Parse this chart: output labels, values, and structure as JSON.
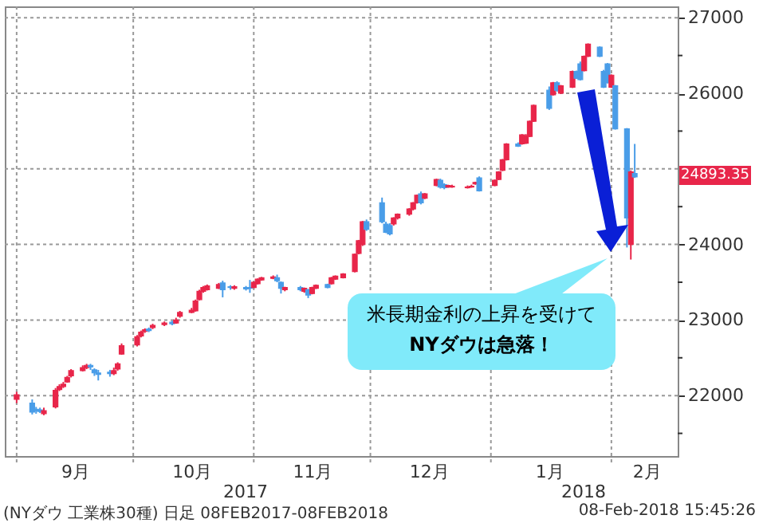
{
  "chart_data": {
    "type": "candlestick",
    "x": [
      "2017-09-01",
      "2017-09-05",
      "2017-09-06",
      "2017-09-07",
      "2017-09-08",
      "2017-09-11",
      "2017-09-12",
      "2017-09-13",
      "2017-09-14",
      "2017-09-15",
      "2017-09-18",
      "2017-09-19",
      "2017-09-20",
      "2017-09-21",
      "2017-09-22",
      "2017-09-25",
      "2017-09-26",
      "2017-09-27",
      "2017-09-28",
      "2017-10-02",
      "2017-10-03",
      "2017-10-04",
      "2017-10-05",
      "2017-10-06",
      "2017-10-09",
      "2017-10-11",
      "2017-10-12",
      "2017-10-13",
      "2017-10-16",
      "2017-10-17",
      "2017-10-18",
      "2017-10-19",
      "2017-10-20",
      "2017-10-23",
      "2017-10-24",
      "2017-10-26",
      "2017-10-27",
      "2017-10-30",
      "2017-10-31",
      "2017-11-01",
      "2017-11-02",
      "2017-11-03",
      "2017-11-06",
      "2017-11-07",
      "2017-11-08",
      "2017-11-09",
      "2017-11-13",
      "2017-11-14",
      "2017-11-15",
      "2017-11-16",
      "2017-11-17",
      "2017-11-20",
      "2017-11-21",
      "2017-11-22",
      "2017-11-24",
      "2017-11-27",
      "2017-11-28",
      "2017-11-29",
      "2017-11-30",
      "2017-12-04",
      "2017-12-05",
      "2017-12-06",
      "2017-12-07",
      "2017-12-08",
      "2017-12-11",
      "2017-12-12",
      "2017-12-13",
      "2017-12-14",
      "2017-12-15",
      "2017-12-18",
      "2017-12-19",
      "2017-12-20",
      "2017-12-21",
      "2017-12-22",
      "2017-12-26",
      "2017-12-27",
      "2017-12-28",
      "2017-12-29",
      "2018-01-02",
      "2018-01-03",
      "2018-01-04",
      "2018-01-05",
      "2018-01-08",
      "2018-01-09",
      "2018-01-10",
      "2018-01-11",
      "2018-01-12",
      "2018-01-16",
      "2018-01-17",
      "2018-01-18",
      "2018-01-19",
      "2018-01-22",
      "2018-01-23",
      "2018-01-24",
      "2018-01-25",
      "2018-01-26",
      "2018-01-29",
      "2018-01-30",
      "2018-01-31",
      "2018-02-01",
      "2018-02-02",
      "2018-02-05",
      "2018-02-06",
      "2018-02-07"
    ],
    "ohlc": [
      [
        21950,
        22050,
        21900,
        22010
      ],
      [
        21900,
        21950,
        21750,
        21780
      ],
      [
        21820,
        21850,
        21760,
        21800
      ],
      [
        21810,
        21840,
        21770,
        21790
      ],
      [
        21760,
        21840,
        21740,
        21800
      ],
      [
        21850,
        22100,
        21830,
        22070
      ],
      [
        22080,
        22150,
        22060,
        22120
      ],
      [
        22120,
        22180,
        22100,
        22150
      ],
      [
        22180,
        22260,
        22170,
        22240
      ],
      [
        22260,
        22350,
        22240,
        22330
      ],
      [
        22330,
        22400,
        22320,
        22370
      ],
      [
        22370,
        22420,
        22350,
        22400
      ],
      [
        22400,
        22420,
        22340,
        22380
      ],
      [
        22340,
        22360,
        22260,
        22300
      ],
      [
        22300,
        22340,
        22200,
        22280
      ],
      [
        22310,
        22340,
        22250,
        22290
      ],
      [
        22290,
        22370,
        22270,
        22330
      ],
      [
        22350,
        22440,
        22330,
        22420
      ],
      [
        22550,
        22690,
        22540,
        22660
      ],
      [
        22670,
        22800,
        22650,
        22780
      ],
      [
        22790,
        22860,
        22770,
        22840
      ],
      [
        22850,
        22890,
        22830,
        22870
      ],
      [
        22880,
        22900,
        22840,
        22860
      ],
      [
        22900,
        22950,
        22880,
        22930
      ],
      [
        22940,
        22980,
        22920,
        22960
      ],
      [
        22970,
        22990,
        22930,
        22950
      ],
      [
        22960,
        23030,
        22950,
        23000
      ],
      [
        23050,
        23120,
        23030,
        23100
      ],
      [
        23100,
        23160,
        23090,
        23130
      ],
      [
        23120,
        23270,
        23110,
        23250
      ],
      [
        23270,
        23400,
        23260,
        23380
      ],
      [
        23380,
        23450,
        23360,
        23430
      ],
      [
        23400,
        23470,
        23390,
        23450
      ],
      [
        23420,
        23490,
        23410,
        23470
      ],
      [
        23490,
        23520,
        23300,
        23400
      ],
      [
        23440,
        23460,
        23400,
        23430
      ],
      [
        23420,
        23460,
        23400,
        23440
      ],
      [
        23430,
        23450,
        23390,
        23410
      ],
      [
        23430,
        23530,
        23360,
        23420
      ],
      [
        23430,
        23510,
        23420,
        23500
      ],
      [
        23480,
        23550,
        23470,
        23540
      ],
      [
        23530,
        23570,
        23520,
        23560
      ],
      [
        23550,
        23590,
        23540,
        23570
      ],
      [
        23560,
        23600,
        23500,
        23520
      ],
      [
        23500,
        23510,
        23350,
        23420
      ],
      [
        23400,
        23440,
        23380,
        23430
      ],
      [
        23430,
        23450,
        23380,
        23400
      ],
      [
        23380,
        23430,
        23360,
        23420
      ],
      [
        23400,
        23410,
        23290,
        23330
      ],
      [
        23350,
        23440,
        23340,
        23430
      ],
      [
        23420,
        23470,
        23410,
        23460
      ],
      [
        23470,
        23480,
        23420,
        23430
      ],
      [
        23480,
        23570,
        23470,
        23560
      ],
      [
        23540,
        23590,
        23530,
        23580
      ],
      [
        23560,
        23620,
        23550,
        23610
      ],
      [
        23640,
        23880,
        23630,
        23870
      ],
      [
        23880,
        24060,
        23870,
        24050
      ],
      [
        24000,
        24310,
        23980,
        24300
      ],
      [
        24300,
        24330,
        24180,
        24200
      ],
      [
        24550,
        24620,
        24280,
        24300
      ],
      [
        24270,
        24300,
        24150,
        24160
      ],
      [
        24250,
        24280,
        24120,
        24140
      ],
      [
        24270,
        24360,
        24250,
        24350
      ],
      [
        24350,
        24410,
        24330,
        24400
      ],
      [
        24400,
        24480,
        24380,
        24470
      ],
      [
        24470,
        24560,
        24450,
        24550
      ],
      [
        24550,
        24660,
        24540,
        24650
      ],
      [
        24670,
        24700,
        24530,
        24550
      ],
      [
        24610,
        24680,
        24600,
        24670
      ],
      [
        24780,
        24870,
        24770,
        24860
      ],
      [
        24850,
        24870,
        24740,
        24760
      ],
      [
        24790,
        24810,
        24730,
        24750
      ],
      [
        24760,
        24790,
        24750,
        24780
      ],
      [
        24760,
        24790,
        24750,
        24770
      ],
      [
        24750,
        24780,
        24740,
        24760
      ],
      [
        24760,
        24790,
        24750,
        24770
      ],
      [
        24800,
        24830,
        24790,
        24820
      ],
      [
        24880,
        24900,
        24700,
        24710
      ],
      [
        24780,
        24860,
        24770,
        24850
      ],
      [
        24860,
        24970,
        24850,
        24960
      ],
      [
        24980,
        25130,
        24970,
        25120
      ],
      [
        25120,
        25340,
        25110,
        25330
      ],
      [
        25330,
        25350,
        25290,
        25300
      ],
      [
        25330,
        25460,
        25320,
        25450
      ],
      [
        25340,
        25460,
        25330,
        25440
      ],
      [
        25430,
        25640,
        25420,
        25630
      ],
      [
        25630,
        25850,
        25620,
        25840
      ],
      [
        26040,
        26090,
        25780,
        25800
      ],
      [
        25980,
        26150,
        25970,
        26140
      ],
      [
        26140,
        26160,
        26020,
        26040
      ],
      [
        26000,
        26110,
        25990,
        26100
      ],
      [
        26080,
        26300,
        26070,
        26290
      ],
      [
        26290,
        26300,
        26190,
        26200
      ],
      [
        26390,
        26420,
        26170,
        26180
      ],
      [
        26300,
        26500,
        26290,
        26490
      ],
      [
        26490,
        26660,
        26480,
        26650
      ],
      [
        26610,
        26620,
        26480,
        26490
      ],
      [
        26290,
        26310,
        26070,
        26080
      ],
      [
        26390,
        26400,
        26130,
        26140
      ],
      [
        26080,
        26250,
        26070,
        26240
      ],
      [
        26100,
        26110,
        25520,
        25530
      ],
      [
        25530,
        25540,
        23960,
        24350
      ],
      [
        24000,
        24980,
        23800,
        24960
      ],
      [
        24940,
        25330,
        24880,
        24893.35
      ]
    ],
    "colors": [
      "#e8264a",
      "#4a9de8",
      "#4a9de8",
      "#4a9de8",
      "#e8264a",
      "#e8264a",
      "#e8264a",
      "#e8264a",
      "#e8264a",
      "#e8264a",
      "#e8264a",
      "#e8264a",
      "#4a9de8",
      "#4a9de8",
      "#4a9de8",
      "#4a9de8",
      "#e8264a",
      "#e8264a",
      "#e8264a",
      "#e8264a",
      "#e8264a",
      "#e8264a",
      "#4a9de8",
      "#e8264a",
      "#e8264a",
      "#4a9de8",
      "#e8264a",
      "#e8264a",
      "#e8264a",
      "#e8264a",
      "#e8264a",
      "#e8264a",
      "#e8264a",
      "#e8264a",
      "#4a9de8",
      "#4a9de8",
      "#e8264a",
      "#4a9de8",
      "#4a9de8",
      "#e8264a",
      "#e8264a",
      "#e8264a",
      "#e8264a",
      "#4a9de8",
      "#4a9de8",
      "#e8264a",
      "#4a9de8",
      "#e8264a",
      "#4a9de8",
      "#e8264a",
      "#e8264a",
      "#4a9de8",
      "#e8264a",
      "#e8264a",
      "#e8264a",
      "#e8264a",
      "#e8264a",
      "#e8264a",
      "#4a9de8",
      "#4a9de8",
      "#4a9de8",
      "#4a9de8",
      "#e8264a",
      "#e8264a",
      "#e8264a",
      "#e8264a",
      "#e8264a",
      "#4a9de8",
      "#e8264a",
      "#e8264a",
      "#4a9de8",
      "#4a9de8",
      "#e8264a",
      "#e8264a",
      "#e8264a",
      "#e8264a",
      "#e8264a",
      "#4a9de8",
      "#e8264a",
      "#e8264a",
      "#e8264a",
      "#e8264a",
      "#4a9de8",
      "#e8264a",
      "#e8264a",
      "#e8264a",
      "#e8264a",
      "#4a9de8",
      "#e8264a",
      "#4a9de8",
      "#e8264a",
      "#e8264a",
      "#4a9de8",
      "#4a9de8",
      "#e8264a",
      "#e8264a",
      "#4a9de8",
      "#4a9de8",
      "#4a9de8",
      "#e8264a",
      "#4a9de8",
      "#4a9de8",
      "#e8264a",
      "#4a9de8"
    ],
    "xlim": [
      "2017-08-31",
      "2018-02-16"
    ],
    "xticks": [
      {
        "value": "2017-09-01",
        "label": null
      },
      {
        "value": "2017-09-16",
        "label": "9月"
      },
      {
        "value": "2017-10-01",
        "label": null
      },
      {
        "value": "2017-10-16",
        "label": "10月"
      },
      {
        "value": "2017-11-01",
        "label": null
      },
      {
        "value": "2017-11-16",
        "label": "11月"
      },
      {
        "value": "2017-12-01",
        "label": null
      },
      {
        "value": "2017-12-16",
        "label": "12月"
      },
      {
        "value": "2018-01-01",
        "label": null
      },
      {
        "value": "2018-01-16",
        "label": "1月"
      },
      {
        "value": "2018-02-01",
        "label": null
      },
      {
        "value": "2018-02-10",
        "label": "2月"
      }
    ],
    "ylim": [
      21200,
      27150
    ],
    "yticks": [
      {
        "value": 21500,
        "label": null
      },
      22000,
      {
        "value": 22500,
        "label": null
      },
      23000,
      {
        "value": 23500,
        "label": null
      },
      24000,
      {
        "value": 24500,
        "label": null
      },
      {
        "value": 25000,
        "label": null
      },
      {
        "value": 25500,
        "label": null
      },
      26000,
      {
        "value": 26500,
        "label": null
      },
      27000
    ],
    "grid": true,
    "annotations": [
      "2017",
      "2018",
      "(NYダウ 工業株30種) 日足 08FEB2017-08FEB2018",
      "08-Feb-2018 15:45:26",
      "米長期金利の上昇を受けて\nNYダウは急落！",
      "24893.35"
    ]
  }
}
